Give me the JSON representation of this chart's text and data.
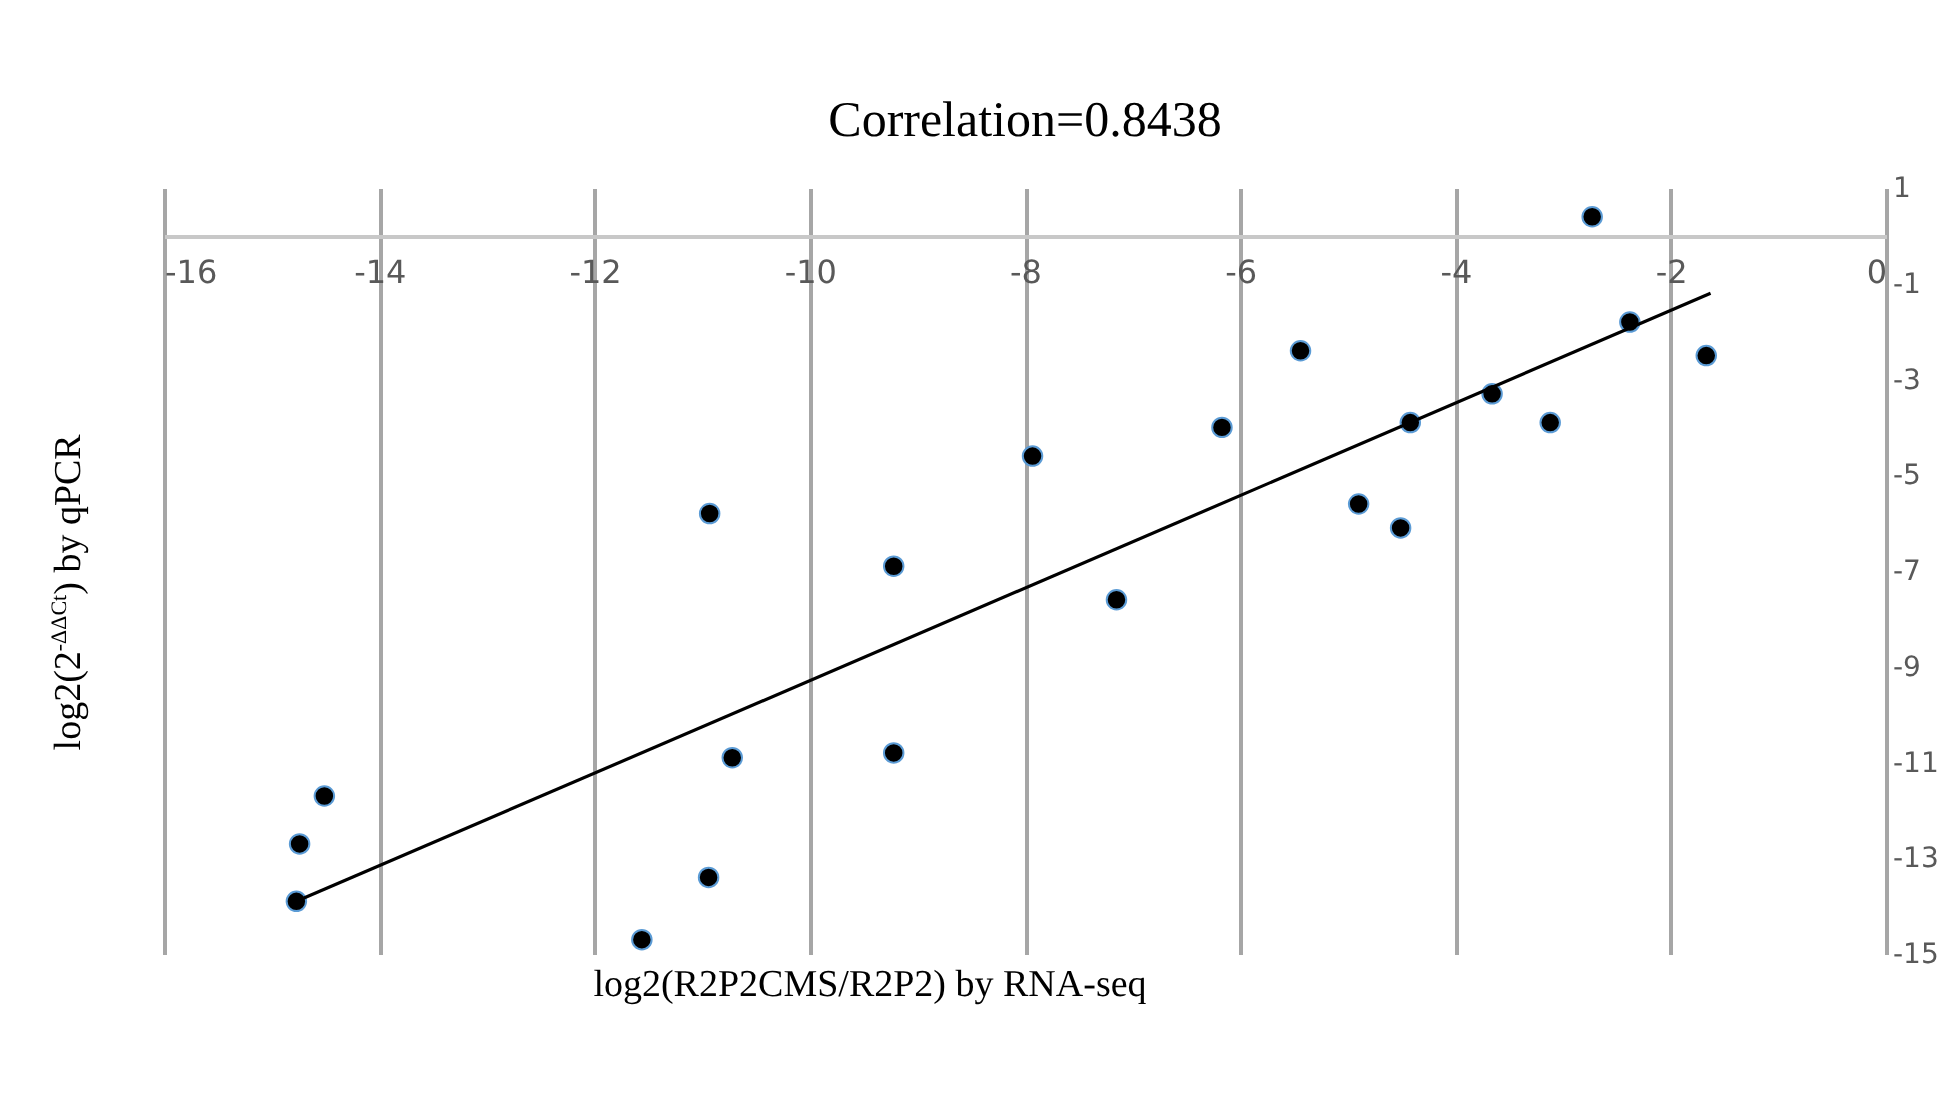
{
  "chart_data": {
    "type": "scatter",
    "title": "Correlation=0.8438",
    "xlabel": "log2(R2P2CMS/R2P2) by RNA-seq",
    "ylabel": "log2(2$^{-ΔΔCt}$) by qPCR",
    "series": [
      {
        "marker": "circle",
        "color": "#000000",
        "x": [
          -2.73,
          -2.38,
          -1.67,
          -5.44,
          -3.66,
          -3.12,
          -4.42,
          -6.17,
          -7.93,
          -4.9,
          -4.51,
          -10.93,
          -9.22,
          -7.15,
          -10.72,
          -9.22,
          -14.51,
          -14.74,
          -10.94,
          -14.77,
          -11.56
        ],
        "values": [
          0.4,
          -1.8,
          -2.5,
          -2.4,
          -3.3,
          -3.9,
          -3.9,
          -4.0,
          -4.6,
          -5.6,
          -6.1,
          -5.8,
          -6.9,
          -7.6,
          -10.9,
          -10.8,
          -11.7,
          -12.7,
          -13.4,
          -13.9,
          -14.7
        ]
      },
      {
        "type": "line",
        "color": "#000000",
        "x": [
          -14.77,
          -1.63
        ],
        "values": [
          -13.9,
          -1.2
        ]
      }
    ],
    "xlim": [
      -16,
      0
    ],
    "xticks": [
      -16,
      -14,
      -12,
      -10,
      -8,
      -6,
      -4,
      -2,
      0
    ],
    "ylim": [
      -15,
      1
    ],
    "yticks": [
      1,
      -1,
      -3,
      -5,
      -7,
      -9,
      -11,
      -13,
      -15
    ],
    "grid": "x"
  }
}
